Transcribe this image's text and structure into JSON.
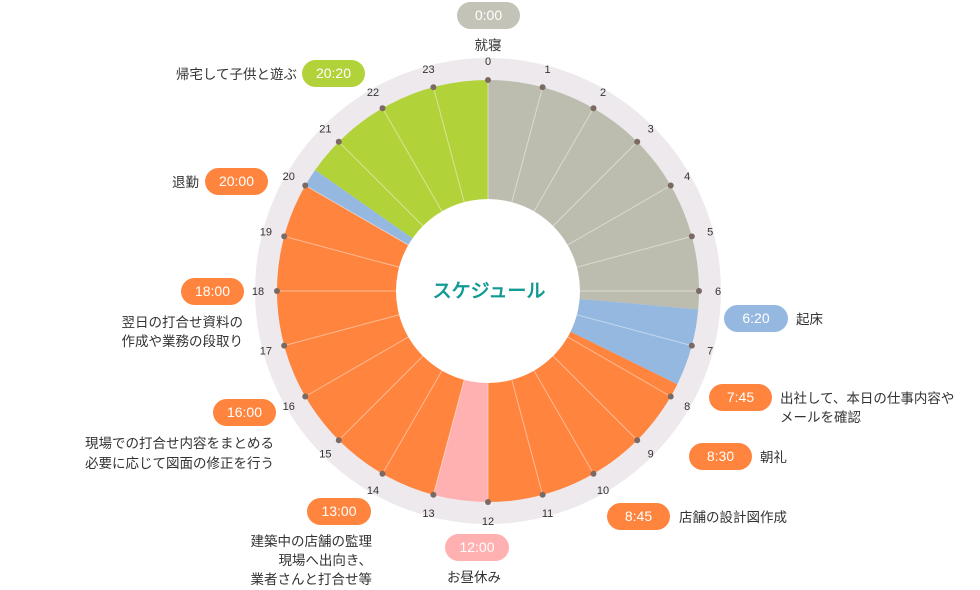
{
  "title": "スケジュール",
  "colors": {
    "ring": "#eee9ec",
    "sleep": "#bcbcaf",
    "morning": "#94b8df",
    "work": "#ff843e",
    "lunch": "#ffb0b0",
    "family": "#b2d23a",
    "tick_dot": "#7a6a63",
    "pill_sleep": "#c3c3b8",
    "title": "#139a94"
  },
  "hours": [
    "0",
    "1",
    "2",
    "3",
    "4",
    "5",
    "6",
    "7",
    "8",
    "9",
    "10",
    "11",
    "12",
    "13",
    "14",
    "15",
    "16",
    "17",
    "18",
    "19",
    "20",
    "21",
    "22",
    "23"
  ],
  "segments": [
    {
      "start": 0,
      "end": 6.333,
      "color": "sleep"
    },
    {
      "start": 6.333,
      "end": 7.75,
      "color": "morning"
    },
    {
      "start": 7.75,
      "end": 12,
      "color": "work"
    },
    {
      "start": 12,
      "end": 13,
      "color": "lunch"
    },
    {
      "start": 13,
      "end": 20,
      "color": "work"
    },
    {
      "start": 20,
      "end": 20.333,
      "color": "morning"
    },
    {
      "start": 20.333,
      "end": 24,
      "color": "family"
    }
  ],
  "events": {
    "e0000": {
      "time": "0:00",
      "label": "就寝"
    },
    "e0620": {
      "time": "6:20",
      "label": "起床"
    },
    "e0745": {
      "time": "7:45",
      "label1": "出社して、本日の仕事内容や",
      "label2": "メールを確認"
    },
    "e0830": {
      "time": "8:30",
      "label": "朝礼"
    },
    "e0845": {
      "time": "8:45",
      "label": "店舗の設計図作成"
    },
    "e1200": {
      "time": "12:00",
      "label": "お昼休み"
    },
    "e1300": {
      "time": "13:00",
      "label1": "建築中の店舗の監理",
      "label2": "現場へ出向き、",
      "label3": "業者さんと打合せ等"
    },
    "e1600": {
      "time": "16:00",
      "label1": "現場での打合せ内容をまとめる",
      "label2": "必要に応じて図面の修正を行う"
    },
    "e1800": {
      "time": "18:00",
      "label1": "翌日の打合せ資料の",
      "label2": "作成や業務の段取り"
    },
    "e2000": {
      "time": "20:00",
      "label": "退勤"
    },
    "e2020": {
      "time": "20:20",
      "label": "帰宅して子供と遊ぶ"
    }
  }
}
